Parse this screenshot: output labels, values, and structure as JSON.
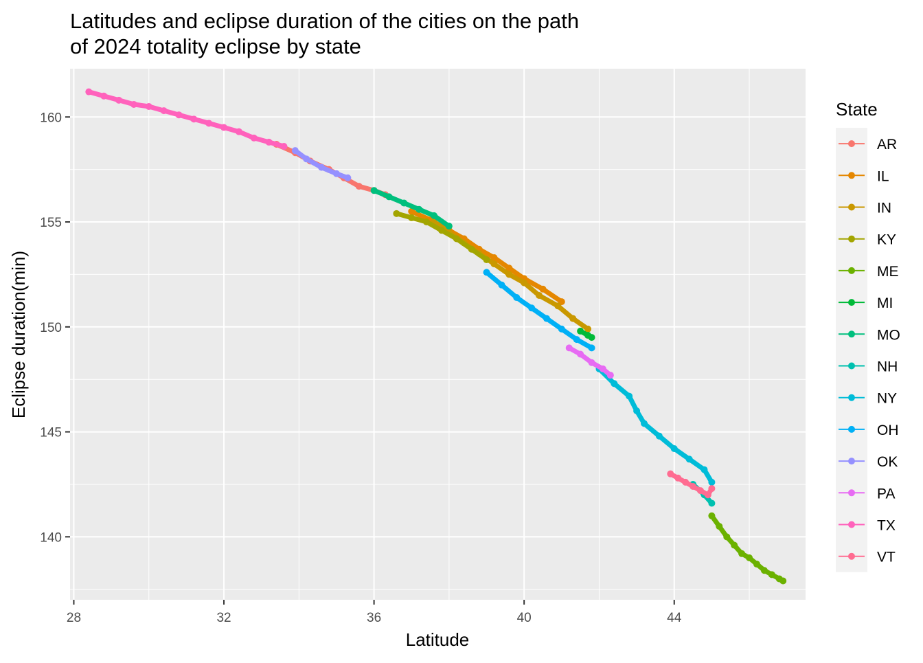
{
  "chart_data": {
    "type": "line",
    "title_line1": "Latitudes and eclipse duration of the cities on the path",
    "title_line2": "of 2024 totality eclipse by state",
    "xlabel": "Latitude",
    "ylabel": "Eclipse duration(min)",
    "xlim": [
      27.9,
      47.5
    ],
    "ylim": [
      137.0,
      162.3
    ],
    "x_ticks": [
      28,
      32,
      36,
      40,
      44
    ],
    "y_ticks": [
      140,
      145,
      150,
      155,
      160
    ],
    "x_tick_labels": [
      "28",
      "32",
      "36",
      "40",
      "44"
    ],
    "y_tick_labels": [
      "140",
      "145",
      "150",
      "155",
      "160"
    ],
    "grid": true,
    "legend_title": "State",
    "legend_position": "right",
    "series": [
      {
        "name": "AR",
        "color": "#F8766D",
        "points": [
          [
            33.4,
            158.7
          ],
          [
            33.9,
            158.3
          ],
          [
            34.3,
            157.9
          ],
          [
            34.8,
            157.5
          ],
          [
            35.2,
            157.1
          ],
          [
            35.6,
            156.7
          ],
          [
            36.0,
            156.5
          ],
          [
            36.3,
            156.3
          ]
        ]
      },
      {
        "name": "IL",
        "color": "#E58700",
        "points": [
          [
            37.0,
            155.5
          ],
          [
            37.5,
            155.1
          ],
          [
            38.0,
            154.6
          ],
          [
            38.4,
            154.2
          ],
          [
            38.8,
            153.7
          ],
          [
            39.2,
            153.3
          ],
          [
            39.6,
            152.8
          ],
          [
            40.0,
            152.3
          ],
          [
            40.5,
            151.8
          ],
          [
            41.0,
            151.2
          ]
        ]
      },
      {
        "name": "IN",
        "color": "#C99800",
        "points": [
          [
            37.6,
            155.0
          ],
          [
            38.0,
            154.5
          ],
          [
            38.4,
            154.0
          ],
          [
            38.8,
            153.5
          ],
          [
            39.2,
            153.0
          ],
          [
            39.6,
            152.5
          ],
          [
            40.0,
            152.1
          ],
          [
            40.4,
            151.5
          ],
          [
            40.9,
            151.0
          ],
          [
            41.3,
            150.4
          ],
          [
            41.7,
            149.9
          ]
        ]
      },
      {
        "name": "KY",
        "color": "#A3A500",
        "points": [
          [
            36.6,
            155.4
          ],
          [
            37.0,
            155.2
          ],
          [
            37.4,
            155.0
          ],
          [
            37.8,
            154.6
          ],
          [
            38.2,
            154.2
          ],
          [
            38.6,
            153.7
          ],
          [
            39.0,
            153.2
          ]
        ]
      },
      {
        "name": "ME",
        "color": "#6BB100",
        "points": [
          [
            45.0,
            141.0
          ],
          [
            45.2,
            140.5
          ],
          [
            45.4,
            140.0
          ],
          [
            45.6,
            139.6
          ],
          [
            45.8,
            139.2
          ],
          [
            46.0,
            139.0
          ],
          [
            46.2,
            138.7
          ],
          [
            46.4,
            138.4
          ],
          [
            46.6,
            138.2
          ],
          [
            46.8,
            138.0
          ],
          [
            46.9,
            137.9
          ]
        ]
      },
      {
        "name": "MI",
        "color": "#00BA38",
        "points": [
          [
            41.5,
            149.8
          ],
          [
            41.7,
            149.6
          ],
          [
            41.8,
            149.5
          ]
        ]
      },
      {
        "name": "MO",
        "color": "#00BF7D",
        "points": [
          [
            36.0,
            156.5
          ],
          [
            36.4,
            156.2
          ],
          [
            36.8,
            155.9
          ],
          [
            37.2,
            155.6
          ],
          [
            37.6,
            155.3
          ],
          [
            38.0,
            154.8
          ]
        ]
      },
      {
        "name": "NH",
        "color": "#00C0AF",
        "points": [
          [
            44.5,
            142.5
          ],
          [
            44.8,
            142.0
          ],
          [
            45.0,
            141.6
          ]
        ]
      },
      {
        "name": "NY",
        "color": "#00BCD8",
        "points": [
          [
            42.0,
            148.0
          ],
          [
            42.4,
            147.3
          ],
          [
            42.8,
            146.7
          ],
          [
            43.0,
            146.0
          ],
          [
            43.2,
            145.4
          ],
          [
            43.6,
            144.8
          ],
          [
            44.0,
            144.2
          ],
          [
            44.4,
            143.7
          ],
          [
            44.8,
            143.2
          ],
          [
            45.0,
            142.6
          ]
        ]
      },
      {
        "name": "OH",
        "color": "#00B0F6",
        "points": [
          [
            39.0,
            152.6
          ],
          [
            39.4,
            152.0
          ],
          [
            39.8,
            151.4
          ],
          [
            40.2,
            150.9
          ],
          [
            40.6,
            150.4
          ],
          [
            41.0,
            149.9
          ],
          [
            41.4,
            149.4
          ],
          [
            41.8,
            149.0
          ]
        ]
      },
      {
        "name": "OK",
        "color": "#9590FF",
        "points": [
          [
            33.9,
            158.4
          ],
          [
            34.2,
            158.0
          ],
          [
            34.6,
            157.6
          ],
          [
            35.0,
            157.3
          ],
          [
            35.3,
            157.1
          ]
        ]
      },
      {
        "name": "PA",
        "color": "#E76BF3",
        "points": [
          [
            41.2,
            149.0
          ],
          [
            41.5,
            148.7
          ],
          [
            41.8,
            148.3
          ],
          [
            42.1,
            148.0
          ],
          [
            42.3,
            147.7
          ]
        ]
      },
      {
        "name": "TX",
        "color": "#FF62BC",
        "points": [
          [
            28.4,
            161.2
          ],
          [
            28.8,
            161.0
          ],
          [
            29.2,
            160.8
          ],
          [
            29.6,
            160.6
          ],
          [
            30.0,
            160.5
          ],
          [
            30.4,
            160.3
          ],
          [
            30.8,
            160.1
          ],
          [
            31.2,
            159.9
          ],
          [
            31.6,
            159.7
          ],
          [
            32.0,
            159.5
          ],
          [
            32.4,
            159.3
          ],
          [
            32.8,
            159.0
          ],
          [
            33.2,
            158.8
          ],
          [
            33.6,
            158.6
          ]
        ]
      },
      {
        "name": "VT",
        "color": "#FF6C91",
        "points": [
          [
            43.9,
            143.0
          ],
          [
            44.1,
            142.8
          ],
          [
            44.3,
            142.6
          ],
          [
            44.5,
            142.4
          ],
          [
            44.7,
            142.2
          ],
          [
            44.9,
            142.0
          ],
          [
            45.0,
            142.3
          ]
        ]
      }
    ]
  }
}
